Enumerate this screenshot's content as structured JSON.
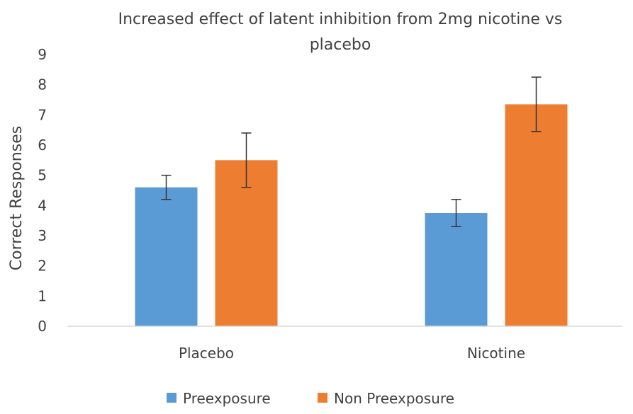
{
  "chart_data": {
    "type": "bar",
    "title_lines": [
      "Increased effect of latent inhibition from 2mg nicotine vs",
      "placebo"
    ],
    "title": "Increased effect of latent inhibition from 2mg nicotine vs placebo",
    "xlabel": "",
    "ylabel": "Correct Responses",
    "ylim": [
      0,
      9
    ],
    "yticks": [
      "0",
      "1",
      "2",
      "3",
      "4",
      "5",
      "6",
      "7",
      "8",
      "9"
    ],
    "grid": false,
    "legend_position": "bottom",
    "categories": [
      "Placebo",
      "Nicotine"
    ],
    "series": [
      {
        "name": "Preexposure",
        "color": "#5B9BD5",
        "values": [
          4.6,
          3.75
        ],
        "errors": [
          0.4,
          0.45
        ]
      },
      {
        "name": "Non Preexposure",
        "color": "#ED7D31",
        "values": [
          5.5,
          7.35
        ],
        "errors": [
          0.9,
          0.9
        ]
      }
    ]
  }
}
